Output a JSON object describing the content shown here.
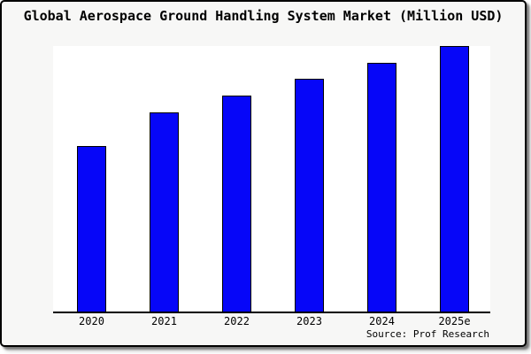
{
  "chart_data": {
    "type": "bar",
    "title": "Global Aerospace Ground Handling System Market (Million USD)",
    "categories": [
      "2020",
      "2021",
      "2022",
      "2023",
      "2024",
      "2025e"
    ],
    "values": [
      187,
      225,
      244,
      263,
      281,
      300
    ],
    "values_note": "y-axis is unlabeled in the image; values are relative bar heights in pixels",
    "xlabel": "",
    "ylabel": "",
    "ylim": [
      0,
      300
    ],
    "grid": false,
    "legend": "none",
    "source": "Source: Prof Research",
    "colors": {
      "bar_fill": "#0606f8",
      "bar_border": "#000000",
      "plot_background": "#ffffff",
      "page_background": "#f7f7f6",
      "axis": "#000000",
      "text": "#000000"
    }
  }
}
